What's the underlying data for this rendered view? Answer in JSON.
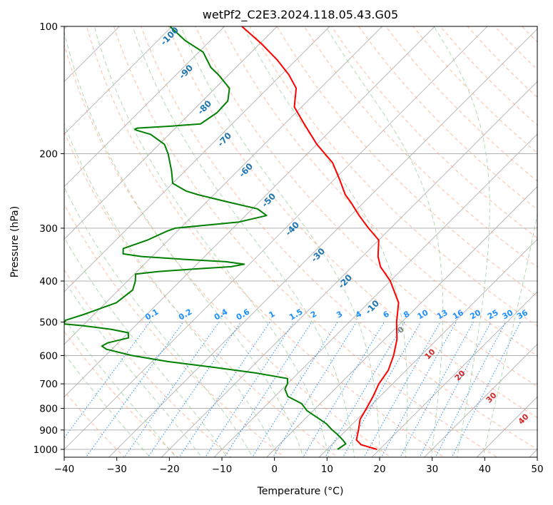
{
  "chart_data": {
    "type": "line",
    "subtype": "skew-t log-p diagram",
    "title": "wetPf2_C2E3.2024.118.05.43.G05",
    "xlabel": "Temperature (°C)",
    "ylabel": "Pressure (hPa)",
    "xlim": [
      -40,
      50
    ],
    "ylim": [
      1050,
      100
    ],
    "y_scale": "log",
    "x_ticks": [
      -40,
      -30,
      -20,
      -10,
      0,
      10,
      20,
      30,
      40,
      50
    ],
    "y_ticks": [
      100,
      200,
      300,
      400,
      500,
      600,
      700,
      800,
      900,
      1000
    ],
    "grid": "horizontal at pressure ticks; skewed isotherms",
    "background_lines": {
      "isotherms_color": "#b0b0b0",
      "dry_adiabats_color": "#ffa07a",
      "moist_adiabats_color": "#9fd09f",
      "mixing_ratio_color": "#1e90ff",
      "adiabat_label_color": "#1f77b4",
      "dry_label_color": "#d62728",
      "zero_label_color": "#808080"
    },
    "adiabat_labels": [
      "-100",
      "-90",
      "-80",
      "-70",
      "-60",
      "-50",
      "-40",
      "-30",
      "-20",
      "-10"
    ],
    "mixing_ratio_labels": [
      "0.1",
      "0.2",
      "0.4",
      "0.6",
      "1",
      "1.5",
      "2",
      "3",
      "4",
      "6",
      "8",
      "10",
      "13",
      "16",
      "20",
      "25",
      "30",
      "36"
    ],
    "dry_adiabat_labels": [
      "0",
      "10",
      "20",
      "30",
      "40"
    ],
    "series": [
      {
        "name": "temperature",
        "color": "#ff0000",
        "points": [
          [
            1000,
            19.5
          ],
          [
            975,
            15.6
          ],
          [
            950,
            13.8
          ],
          [
            900,
            12.3
          ],
          [
            850,
            10.6
          ],
          [
            800,
            9.7
          ],
          [
            750,
            8.7
          ],
          [
            700,
            7.4
          ],
          [
            650,
            6.6
          ],
          [
            600,
            4.8
          ],
          [
            550,
            2.4
          ],
          [
            500,
            -1.0
          ],
          [
            450,
            -4.3
          ],
          [
            400,
            -10.0
          ],
          [
            370,
            -14.6
          ],
          [
            350,
            -17.0
          ],
          [
            320,
            -20.0
          ],
          [
            300,
            -24.2
          ],
          [
            280,
            -28.4
          ],
          [
            260,
            -32.6
          ],
          [
            250,
            -35.0
          ],
          [
            230,
            -39.0
          ],
          [
            210,
            -43.5
          ],
          [
            190,
            -50.0
          ],
          [
            170,
            -56.3
          ],
          [
            155,
            -61.4
          ],
          [
            140,
            -64.6
          ],
          [
            130,
            -68.6
          ],
          [
            120,
            -73.6
          ],
          [
            110,
            -79.6
          ],
          [
            100,
            -86.7
          ]
        ]
      },
      {
        "name": "dewpoint",
        "color": "#008000",
        "points": [
          [
            1000,
            12.0
          ],
          [
            970,
            12.5
          ],
          [
            950,
            11.2
          ],
          [
            920,
            9.0
          ],
          [
            900,
            7.3
          ],
          [
            870,
            5.0
          ],
          [
            850,
            3.0
          ],
          [
            810,
            -1.2
          ],
          [
            780,
            -3.5
          ],
          [
            750,
            -7.5
          ],
          [
            720,
            -9.5
          ],
          [
            700,
            -10.0
          ],
          [
            690,
            -10.5
          ],
          [
            680,
            -11.0
          ],
          [
            660,
            -18.0
          ],
          [
            640,
            -27.0
          ],
          [
            620,
            -37.0
          ],
          [
            600,
            -45.0
          ],
          [
            580,
            -51.0
          ],
          [
            570,
            -52.5
          ],
          [
            560,
            -52.0
          ],
          [
            545,
            -49.0
          ],
          [
            530,
            -50.0
          ],
          [
            520,
            -54.0
          ],
          [
            510,
            -60.0
          ],
          [
            505,
            -64.0
          ],
          [
            495,
            -64.3
          ],
          [
            480,
            -62.0
          ],
          [
            450,
            -58.0
          ],
          [
            420,
            -57.3
          ],
          [
            400,
            -58.5
          ],
          [
            385,
            -59.8
          ],
          [
            380,
            -56.0
          ],
          [
            375,
            -50.0
          ],
          [
            370,
            -43.0
          ],
          [
            365,
            -41.0
          ],
          [
            360,
            -45.0
          ],
          [
            355,
            -54.0
          ],
          [
            350,
            -62.0
          ],
          [
            345,
            -66.0
          ],
          [
            335,
            -67.0
          ],
          [
            320,
            -64.0
          ],
          [
            305,
            -62.0
          ],
          [
            300,
            -61.0
          ],
          [
            290,
            -50.0
          ],
          [
            280,
            -46.0
          ],
          [
            270,
            -49.0
          ],
          [
            260,
            -56.0
          ],
          [
            250,
            -63.0
          ],
          [
            245,
            -66.0
          ],
          [
            235,
            -70.0
          ],
          [
            220,
            -72.5
          ],
          [
            200,
            -76.5
          ],
          [
            190,
            -79.0
          ],
          [
            180,
            -83.5
          ],
          [
            176,
            -87.0
          ],
          [
            175,
            -87.5
          ],
          [
            174,
            -87.2
          ],
          [
            172,
            -81.0
          ],
          [
            170,
            -76.0
          ],
          [
            160,
            -75.0
          ],
          [
            150,
            -75.2
          ],
          [
            140,
            -77.3
          ],
          [
            130,
            -82.0
          ],
          [
            125,
            -84.8
          ],
          [
            115,
            -89.2
          ],
          [
            108,
            -94.8
          ],
          [
            100,
            -100.4
          ]
        ]
      }
    ]
  }
}
